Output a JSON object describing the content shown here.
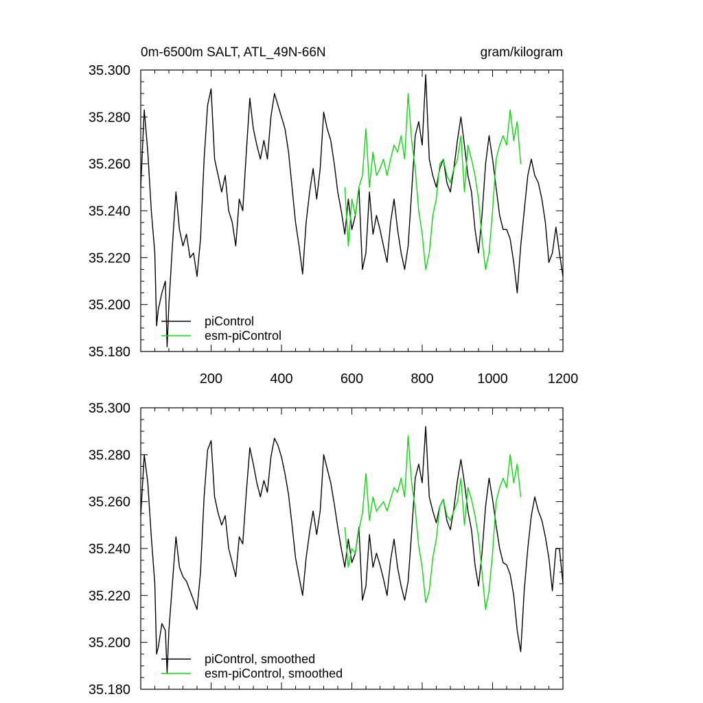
{
  "figure": {
    "title_left": "0m-6500m SALT, ATL_49N-66N",
    "title_right": "gram/kilogram"
  },
  "colors": {
    "piControl": "#000000",
    "esm_piControl": "#00e000"
  },
  "chart_data": [
    {
      "type": "line",
      "panel": "top",
      "xlim": [
        0,
        1200
      ],
      "ylim": [
        35.18,
        35.3
      ],
      "xticks": [
        200,
        400,
        600,
        800,
        1000,
        1200
      ],
      "xtick_labels": [
        "200",
        "400",
        "600",
        "800",
        "1000",
        "1200"
      ],
      "yticks": [
        35.18,
        35.2,
        35.22,
        35.24,
        35.26,
        35.28,
        35.3
      ],
      "ytick_labels": [
        "35.180",
        "35.200",
        "35.220",
        "35.240",
        "35.260",
        "35.280",
        "35.300"
      ],
      "legend_position": "bottom-left",
      "series": [
        {
          "name": "piControl",
          "color": "#000000",
          "x": [
            0,
            10,
            20,
            30,
            40,
            45,
            50,
            60,
            70,
            75,
            80,
            90,
            100,
            110,
            120,
            130,
            140,
            150,
            160,
            170,
            180,
            190,
            200,
            210,
            220,
            230,
            240,
            250,
            260,
            270,
            280,
            290,
            300,
            310,
            320,
            330,
            340,
            350,
            360,
            370,
            380,
            390,
            400,
            410,
            420,
            430,
            440,
            450,
            460,
            470,
            480,
            490,
            500,
            510,
            520,
            530,
            540,
            550,
            560,
            570,
            580,
            590,
            600,
            610,
            620,
            630,
            640,
            650,
            660,
            670,
            680,
            690,
            700,
            710,
            720,
            730,
            740,
            750,
            760,
            770,
            780,
            790,
            800,
            810,
            820,
            830,
            840,
            850,
            860,
            870,
            880,
            890,
            900,
            910,
            920,
            930,
            940,
            950,
            960,
            970,
            980,
            990,
            1000,
            1010,
            1020,
            1030,
            1040,
            1050,
            1060,
            1070,
            1080,
            1090,
            1100,
            1110,
            1120,
            1130,
            1140,
            1150,
            1160,
            1170,
            1180,
            1190,
            1200
          ],
          "y": [
            35.25,
            35.283,
            35.265,
            35.24,
            35.222,
            35.191,
            35.198,
            35.205,
            35.21,
            35.182,
            35.2,
            35.225,
            35.248,
            35.232,
            35.225,
            35.23,
            35.22,
            35.222,
            35.212,
            35.228,
            35.262,
            35.285,
            35.292,
            35.262,
            35.255,
            35.248,
            35.255,
            35.24,
            35.235,
            35.225,
            35.245,
            35.24,
            35.265,
            35.288,
            35.275,
            35.268,
            35.262,
            35.27,
            35.262,
            35.28,
            35.29,
            35.285,
            35.28,
            35.275,
            35.265,
            35.25,
            35.235,
            35.225,
            35.213,
            35.235,
            35.248,
            35.258,
            35.245,
            35.258,
            35.282,
            35.275,
            35.27,
            35.26,
            35.248,
            35.24,
            35.23,
            35.245,
            35.232,
            35.238,
            35.25,
            35.215,
            35.222,
            35.248,
            35.23,
            35.238,
            35.232,
            35.225,
            35.218,
            35.235,
            35.245,
            35.232,
            35.222,
            35.215,
            35.225,
            35.248,
            35.272,
            35.278,
            35.268,
            35.298,
            35.262,
            35.255,
            35.25,
            35.258,
            35.262,
            35.252,
            35.248,
            35.258,
            35.27,
            35.28,
            35.268,
            35.255,
            35.248,
            35.232,
            35.222,
            35.238,
            35.26,
            35.272,
            35.262,
            35.25,
            35.238,
            35.232,
            35.232,
            35.228,
            35.218,
            35.205,
            35.225,
            35.24,
            35.255,
            35.262,
            35.255,
            35.252,
            35.245,
            35.235,
            35.218,
            35.222,
            35.233,
            35.222,
            35.212
          ],
          "y_note": ""
        },
        {
          "name": "esm-piControl",
          "color": "#00e000",
          "x": [
            580,
            590,
            600,
            610,
            620,
            630,
            640,
            650,
            660,
            670,
            680,
            690,
            700,
            710,
            720,
            730,
            740,
            750,
            760,
            770,
            780,
            790,
            800,
            810,
            820,
            830,
            840,
            850,
            860,
            870,
            880,
            890,
            900,
            910,
            920,
            930,
            940,
            950,
            960,
            970,
            980,
            990,
            1000,
            1010,
            1020,
            1030,
            1040,
            1050,
            1060,
            1070,
            1080
          ],
          "y": [
            35.25,
            35.225,
            35.245,
            35.238,
            35.25,
            35.255,
            35.275,
            35.25,
            35.265,
            35.255,
            35.258,
            35.262,
            35.255,
            35.262,
            35.268,
            35.265,
            35.272,
            35.262,
            35.29,
            35.27,
            35.258,
            35.24,
            35.23,
            35.215,
            35.222,
            35.238,
            35.245,
            35.26,
            35.262,
            35.255,
            35.252,
            35.258,
            35.262,
            35.272,
            35.248,
            35.268,
            35.262,
            35.255,
            35.245,
            35.228,
            35.215,
            35.222,
            35.24,
            35.262,
            35.268,
            35.272,
            35.268,
            35.283,
            35.27,
            35.278,
            35.26
          ],
          "y_note": ""
        }
      ]
    },
    {
      "type": "line",
      "panel": "bottom",
      "xlim": [
        0,
        1200
      ],
      "ylim": [
        35.18,
        35.3
      ],
      "yticks": [
        35.18,
        35.2,
        35.22,
        35.24,
        35.26,
        35.28,
        35.3
      ],
      "ytick_labels": [
        "35.180",
        "35.200",
        "35.220",
        "35.240",
        "35.260",
        "35.280",
        "35.300"
      ],
      "legend_position": "bottom-left",
      "series": [
        {
          "name": "piControl, smoothed",
          "color": "#000000",
          "x": [
            0,
            10,
            20,
            30,
            40,
            45,
            50,
            60,
            70,
            75,
            80,
            90,
            100,
            110,
            120,
            130,
            140,
            150,
            160,
            170,
            180,
            190,
            200,
            210,
            220,
            230,
            240,
            250,
            260,
            270,
            280,
            290,
            300,
            310,
            320,
            330,
            340,
            350,
            360,
            370,
            380,
            390,
            400,
            410,
            420,
            430,
            440,
            450,
            460,
            470,
            480,
            490,
            500,
            510,
            520,
            530,
            540,
            550,
            560,
            570,
            580,
            590,
            600,
            610,
            620,
            630,
            640,
            650,
            660,
            670,
            680,
            690,
            700,
            710,
            720,
            730,
            740,
            750,
            760,
            770,
            780,
            790,
            800,
            810,
            820,
            830,
            840,
            850,
            860,
            870,
            880,
            890,
            900,
            910,
            920,
            930,
            940,
            950,
            960,
            970,
            980,
            990,
            1000,
            1010,
            1020,
            1030,
            1040,
            1050,
            1060,
            1070,
            1080,
            1090,
            1100,
            1110,
            1120,
            1130,
            1140,
            1150,
            1160,
            1170,
            1180,
            1190,
            1200
          ],
          "y": [
            35.254,
            35.28,
            35.268,
            35.245,
            35.225,
            35.195,
            35.198,
            35.208,
            35.205,
            35.187,
            35.205,
            35.225,
            35.245,
            35.232,
            35.228,
            35.226,
            35.222,
            35.218,
            35.214,
            35.23,
            35.262,
            35.282,
            35.286,
            35.262,
            35.255,
            35.25,
            35.254,
            35.24,
            35.234,
            35.228,
            35.245,
            35.242,
            35.264,
            35.283,
            35.276,
            35.268,
            35.262,
            35.269,
            35.264,
            35.279,
            35.287,
            35.284,
            35.279,
            35.272,
            35.263,
            35.25,
            35.236,
            35.228,
            35.22,
            35.236,
            35.247,
            35.256,
            35.246,
            35.256,
            35.28,
            35.274,
            35.268,
            35.259,
            35.249,
            35.24,
            35.232,
            35.244,
            35.234,
            35.238,
            35.249,
            35.218,
            35.224,
            35.246,
            35.232,
            35.238,
            35.233,
            35.227,
            35.22,
            35.235,
            35.244,
            35.232,
            35.224,
            35.218,
            35.226,
            35.247,
            35.27,
            35.276,
            35.268,
            35.292,
            35.262,
            35.256,
            35.251,
            35.258,
            35.261,
            35.252,
            35.248,
            35.257,
            35.269,
            35.278,
            35.268,
            35.256,
            35.248,
            35.233,
            35.224,
            35.238,
            35.258,
            35.27,
            35.261,
            35.25,
            35.24,
            35.234,
            35.233,
            35.229,
            35.22,
            35.205,
            35.196,
            35.222,
            35.24,
            35.254,
            35.262,
            35.256,
            35.252,
            35.245,
            35.236,
            35.222,
            35.24,
            35.24,
            35.225
          ],
          "y_note": ""
        },
        {
          "name": "esm-piControl, smoothed",
          "color": "#00e000",
          "x": [
            580,
            590,
            600,
            610,
            620,
            630,
            640,
            650,
            660,
            670,
            680,
            690,
            700,
            710,
            720,
            730,
            740,
            750,
            760,
            770,
            780,
            790,
            800,
            810,
            820,
            830,
            840,
            850,
            860,
            870,
            880,
            890,
            900,
            910,
            920,
            930,
            940,
            950,
            960,
            970,
            980,
            990,
            1000,
            1010,
            1020,
            1030,
            1040,
            1050,
            1060,
            1070,
            1080
          ],
          "y": [
            35.249,
            35.232,
            35.24,
            35.238,
            35.248,
            35.255,
            35.272,
            35.252,
            35.262,
            35.256,
            35.258,
            35.26,
            35.256,
            35.261,
            35.266,
            35.264,
            35.27,
            35.262,
            35.288,
            35.268,
            35.257,
            35.241,
            35.232,
            35.217,
            35.222,
            35.236,
            35.244,
            35.258,
            35.261,
            35.254,
            35.252,
            35.256,
            35.26,
            35.27,
            35.25,
            35.266,
            35.261,
            35.254,
            35.245,
            35.23,
            35.214,
            35.222,
            35.238,
            35.26,
            35.266,
            35.27,
            35.266,
            35.28,
            35.268,
            35.276,
            35.262
          ],
          "y_note": ""
        }
      ]
    }
  ]
}
